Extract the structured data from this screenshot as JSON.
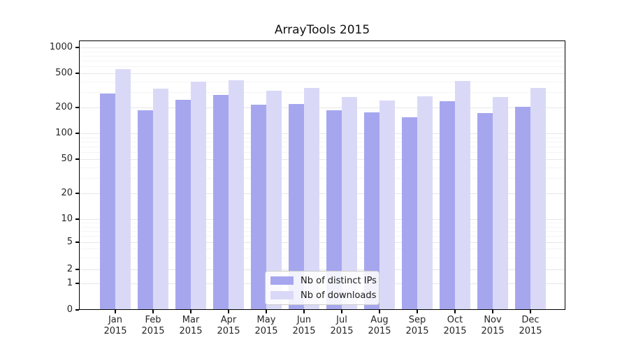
{
  "chart_data": {
    "type": "bar",
    "title": "ArrayTools 2015",
    "categories": [
      "Jan",
      "Feb",
      "Mar",
      "Apr",
      "May",
      "Jun",
      "Jul",
      "Aug",
      "Sep",
      "Oct",
      "Nov",
      "Dec"
    ],
    "category_year_line": "2015",
    "series": [
      {
        "name": "Nb of distinct IPs",
        "color": "#a6a6ef",
        "values": [
          290,
          185,
          246,
          278,
          216,
          221,
          186,
          175,
          155,
          237,
          173,
          203
        ]
      },
      {
        "name": "Nb of downloads",
        "color": "#d9d9f7",
        "values": [
          555,
          330,
          400,
          415,
          313,
          340,
          265,
          240,
          270,
          408,
          265,
          338
        ]
      }
    ],
    "xlabel": "",
    "ylabel": "",
    "yscale": "symlog",
    "yticks": [
      0,
      1,
      2,
      5,
      10,
      20,
      50,
      100,
      200,
      500,
      1000
    ],
    "ylim": [
      0,
      1000
    ],
    "grid": true,
    "legend_position": "lower center"
  }
}
